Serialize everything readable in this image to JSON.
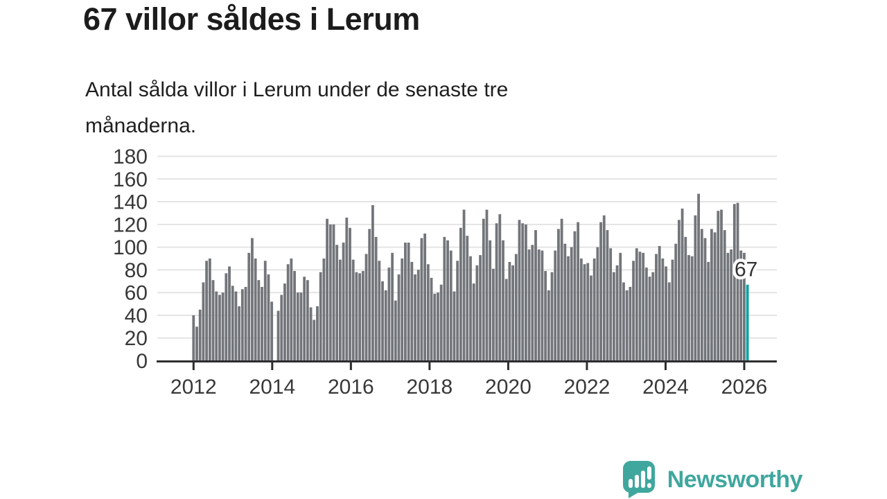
{
  "header": {
    "title": "67 villor såldes i Lerum",
    "subtitle_line1": "Antal sålda villor i Lerum under de senaste tre",
    "subtitle_line2": "månaderna."
  },
  "chart_data": {
    "type": "bar",
    "title": "67 villor såldes i Lerum",
    "subtitle": "Antal sålda villor i Lerum under de senaste tre månaderna.",
    "frequency": "monthly",
    "x_start": "2012-01",
    "x_tick_labels": [
      "2012",
      "2014",
      "2016",
      "2018",
      "2020",
      "2022",
      "2024",
      "2026"
    ],
    "y_tick_labels": [
      "0",
      "20",
      "40",
      "60",
      "80",
      "100",
      "120",
      "140",
      "160",
      "180"
    ],
    "y_ticks": [
      0,
      20,
      40,
      60,
      80,
      100,
      120,
      140,
      160,
      180
    ],
    "ylim": [
      0,
      180
    ],
    "grid": true,
    "legend": "none",
    "values": [
      40,
      30,
      45,
      69,
      88,
      90,
      71,
      61,
      58,
      60,
      77,
      83,
      66,
      61,
      48,
      63,
      65,
      95,
      108,
      90,
      71,
      65,
      88,
      76,
      52,
      0,
      44,
      58,
      68,
      85,
      90,
      79,
      60,
      60,
      74,
      71,
      47,
      36,
      48,
      78,
      90,
      125,
      120,
      120,
      102,
      89,
      104,
      126,
      117,
      89,
      78,
      77,
      79,
      94,
      116,
      137,
      109,
      88,
      70,
      62,
      82,
      95,
      53,
      76,
      90,
      104,
      104,
      87,
      76,
      80,
      108,
      112,
      85,
      73,
      59,
      60,
      67,
      109,
      106,
      97,
      61,
      88,
      117,
      133,
      110,
      92,
      68,
      84,
      93,
      125,
      133,
      106,
      81,
      121,
      129,
      106,
      72,
      87,
      84,
      94,
      124,
      121,
      120,
      98,
      102,
      115,
      98,
      97,
      79,
      62,
      78,
      97,
      116,
      125,
      103,
      92,
      100,
      114,
      122,
      90,
      85,
      86,
      75,
      90,
      100,
      122,
      128,
      115,
      99,
      78,
      84,
      95,
      69,
      62,
      65,
      88,
      99,
      96,
      95,
      82,
      74,
      78,
      94,
      101,
      90,
      83,
      69,
      89,
      103,
      124,
      134,
      109,
      93,
      92,
      128,
      147,
      116,
      108,
      87,
      116,
      113,
      132,
      133,
      115,
      95,
      98,
      138,
      139,
      97,
      95,
      67
    ],
    "highlight_last_bar": true,
    "annotation_label": "67",
    "colors": {
      "bar": "#72757a",
      "highlight": "#0aa2a5",
      "gridline": "#e4e4e4",
      "axis": "#2d2d2f",
      "tick_text": "#383838",
      "annotation_text": "#333333"
    }
  },
  "footer": {
    "brand": "Newsworthy",
    "brand_color": "#3fa79e"
  }
}
